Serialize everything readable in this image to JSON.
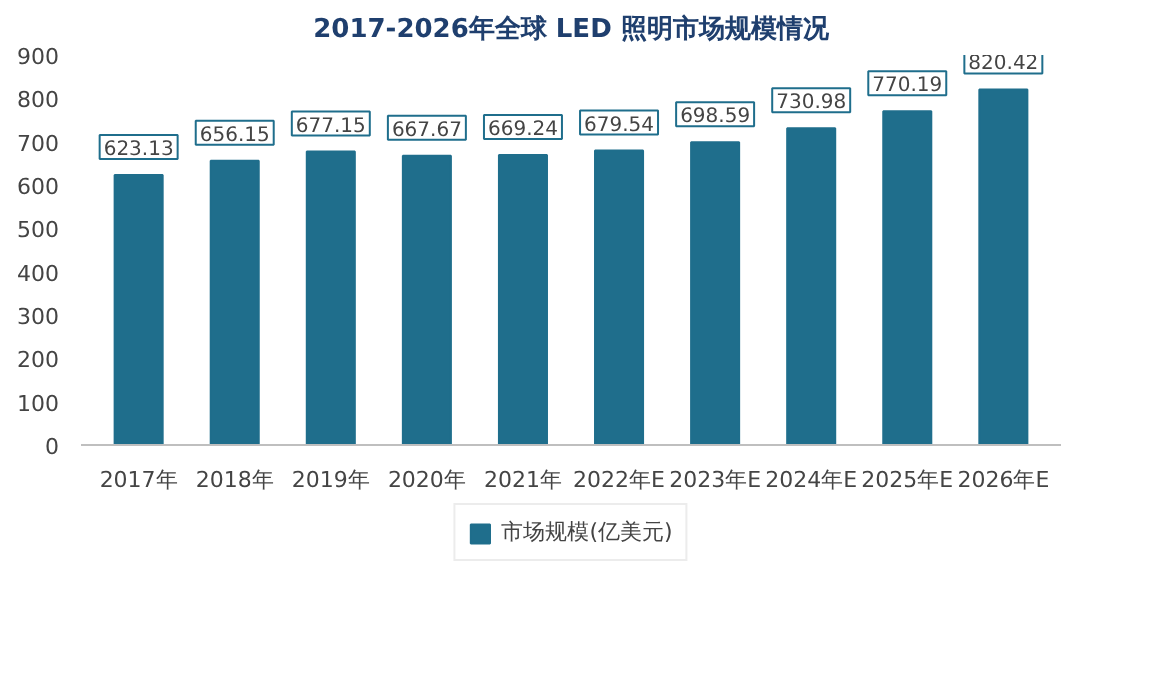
{
  "chart_data": {
    "type": "bar",
    "title": "2017-2026年全球 LED 照明市场规模情况",
    "categories": [
      "2017年",
      "2018年",
      "2019年",
      "2020年",
      "2021年",
      "2022年E",
      "2023年E",
      "2024年E",
      "2025年E",
      "2026年E"
    ],
    "series": [
      {
        "name": "市场规模(亿美元)",
        "color": "#1f6e8c",
        "values": [
          623.13,
          656.15,
          677.15,
          667.67,
          669.24,
          679.54,
          698.59,
          730.98,
          770.19,
          820.42
        ]
      }
    ],
    "ylim": [
      0,
      900
    ],
    "yticks": [
      0,
      100,
      200,
      300,
      400,
      500,
      600,
      700,
      800,
      900
    ],
    "data_labels": true,
    "grid": false,
    "legend": "bottom"
  }
}
